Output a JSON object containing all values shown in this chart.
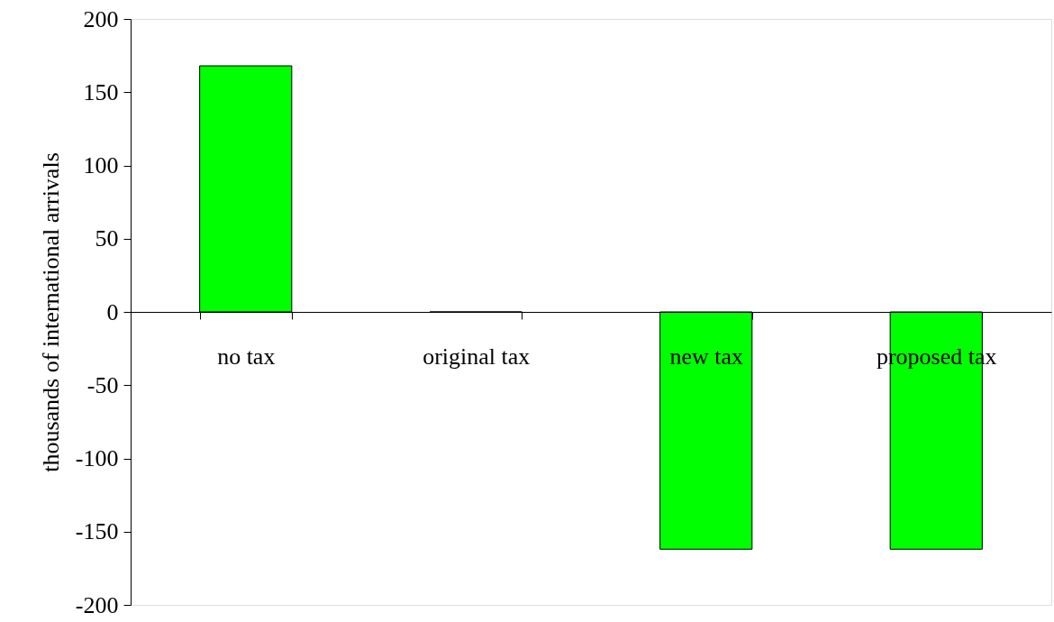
{
  "chart_data": {
    "type": "bar",
    "ylabel": "thousands of international arrivals",
    "categories": [
      "no tax",
      "original tax",
      "new tax",
      "proposed tax"
    ],
    "values": [
      168,
      0,
      -162,
      -162
    ],
    "color": "#00ff00",
    "ylim": [
      -200,
      200
    ],
    "yticks": [
      -200,
      -150,
      -100,
      -50,
      0,
      50,
      100,
      150,
      200
    ],
    "grid": false
  }
}
